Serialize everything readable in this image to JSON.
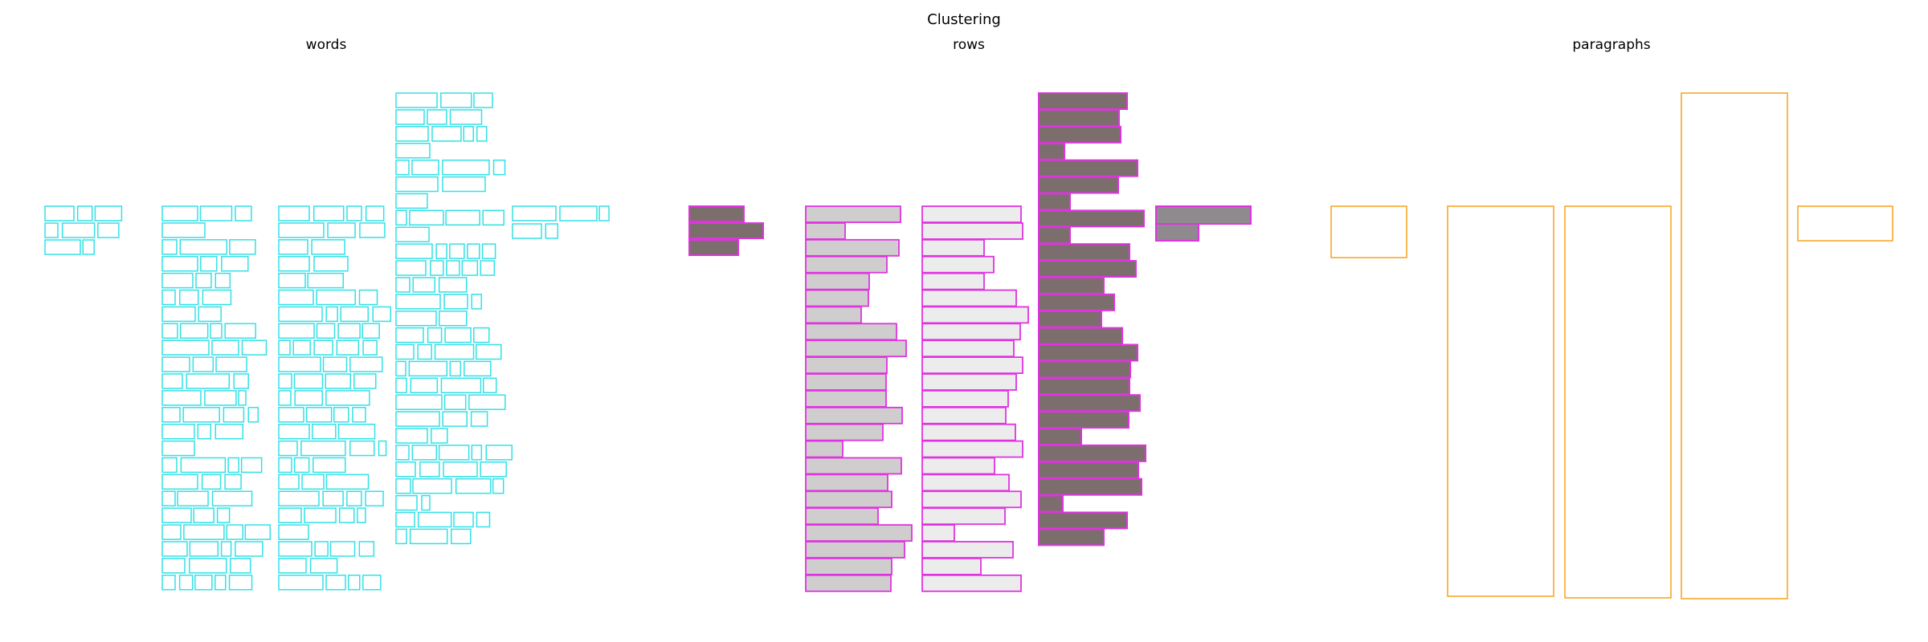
{
  "figure": {
    "title": "Clustering",
    "panels": [
      "words",
      "rows",
      "paragraphs"
    ]
  },
  "colors": {
    "words": "#33e0e6",
    "rows_stroke": "#e033e0",
    "rows_fill_light": "#ececec",
    "rows_fill_mid": "#cfcdcd",
    "rows_fill_dark": "#7d6e6e",
    "rows_fill_gray": "#8e8a8e",
    "paragraphs": "#f5a21a"
  }
}
